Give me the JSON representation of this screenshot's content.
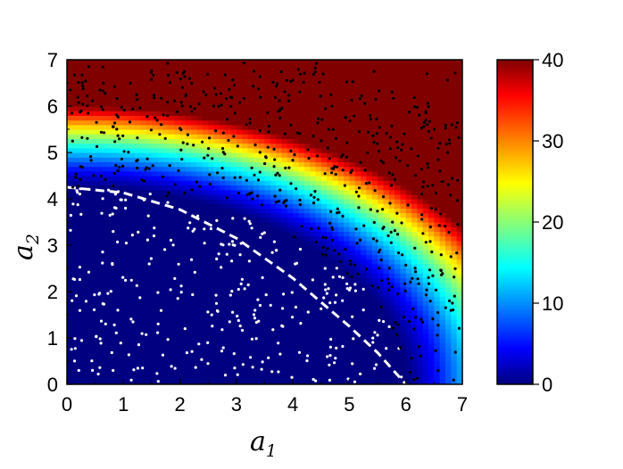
{
  "chart_data": {
    "type": "heatmap",
    "title": "",
    "xlabel": {
      "base": "a",
      "sub": "1"
    },
    "ylabel": {
      "base": "a",
      "sub": "2"
    },
    "xlim": [
      0,
      7
    ],
    "ylim": [
      0,
      7
    ],
    "xticks": [
      "0",
      "1",
      "2",
      "3",
      "4",
      "5",
      "6",
      "7"
    ],
    "yticks": [
      "0",
      "1",
      "2",
      "3",
      "4",
      "5",
      "6",
      "7"
    ],
    "colorbar": {
      "range": [
        0,
        40
      ],
      "ticks": [
        "0",
        "10",
        "20",
        "30",
        "40"
      ],
      "colormap": "jet"
    },
    "field_model": "value ≈ 40·max(0, (a1/6)^2 + (a2/4.25)^2 − 1)^1.2, clipped to [0, 40]",
    "boundary": {
      "style": "white-dashed",
      "points": [
        [
          0,
          4.25
        ],
        [
          1,
          4.13
        ],
        [
          2,
          3.77
        ],
        [
          3,
          3.15
        ],
        [
          4,
          2.29
        ],
        [
          5,
          1.25
        ],
        [
          5.5,
          0.68
        ],
        [
          6,
          0
        ]
      ]
    },
    "scatter": {
      "inside_color": "#ffffff",
      "outside_color": "#000000",
      "inside_count_approx": 280,
      "outside_count_approx": 560
    }
  }
}
